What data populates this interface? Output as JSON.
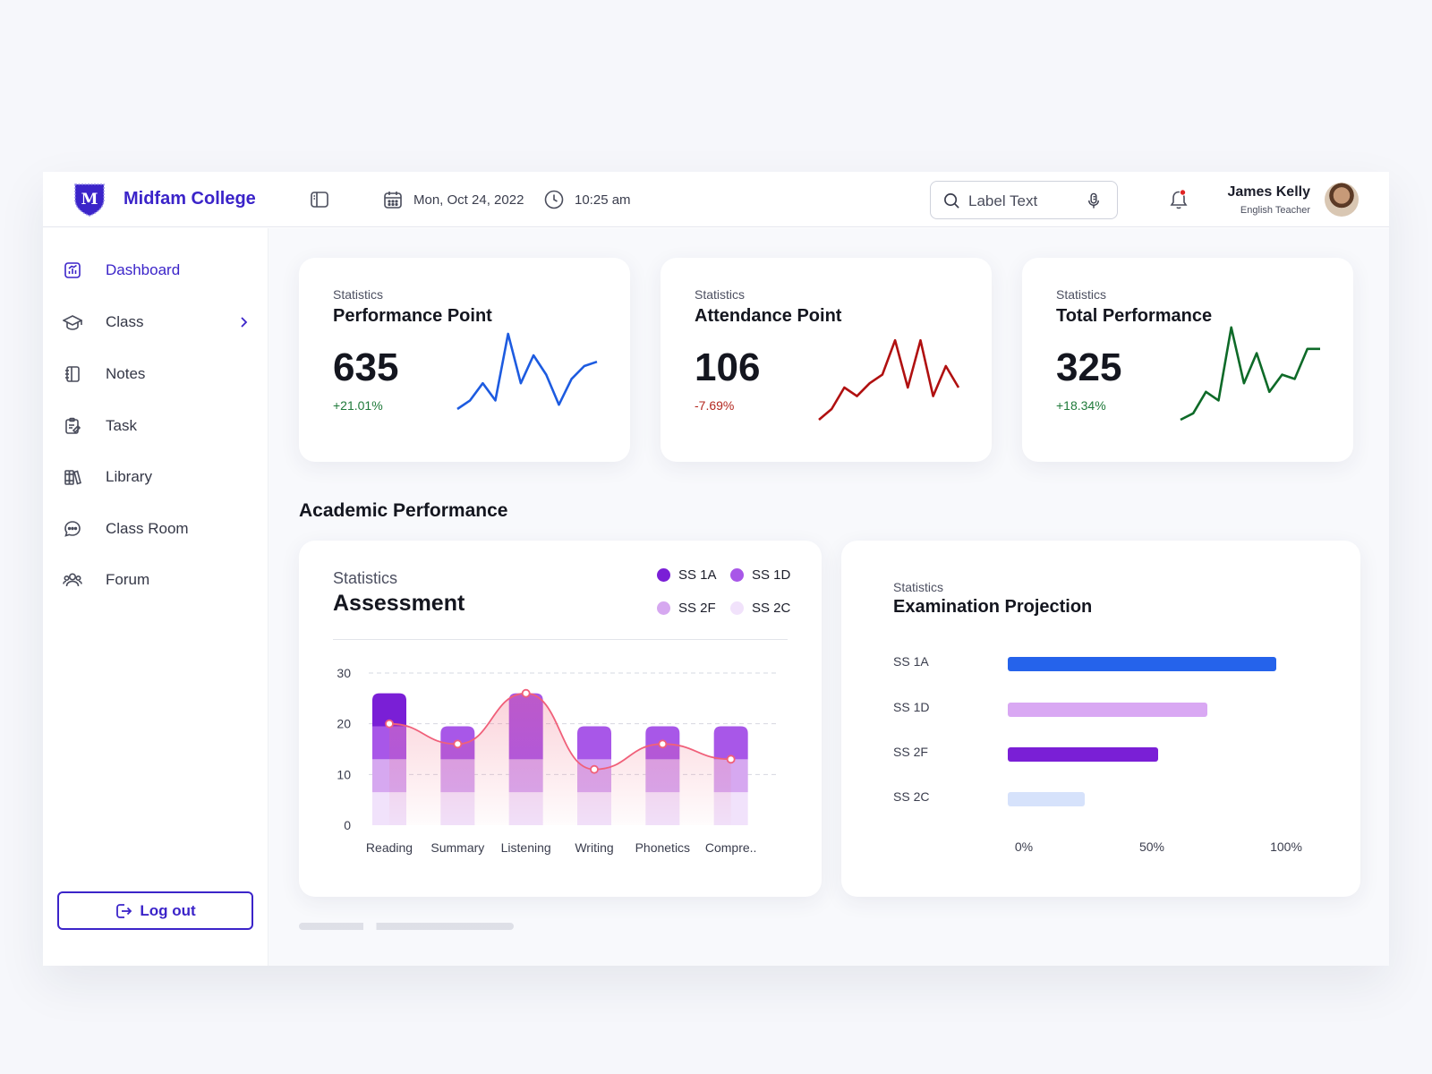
{
  "app": {
    "brand": "Midfam College",
    "logo_letter": "M",
    "date": "Mon, Oct 24, 2022",
    "time": "10:25 am",
    "search_placeholder": "Label Text",
    "user": {
      "name": "James Kelly",
      "role": "English Teacher"
    }
  },
  "sidebar": {
    "items": [
      {
        "label": "Dashboard",
        "icon": "dashboard-icon",
        "active": true
      },
      {
        "label": "Class",
        "icon": "graduation-cap-icon",
        "has_submenu": true
      },
      {
        "label": "Notes",
        "icon": "notebook-icon"
      },
      {
        "label": "Task",
        "icon": "task-icon"
      },
      {
        "label": "Library",
        "icon": "books-icon"
      },
      {
        "label": "Class Room",
        "icon": "chat-icon"
      },
      {
        "label": "Forum",
        "icon": "users-icon"
      }
    ],
    "logout_label": "Log out"
  },
  "stats": [
    {
      "subtitle": "Statistics",
      "title": "Performance Point",
      "value": "635",
      "change": "+21.01%",
      "change_color": "#1f7a3a",
      "line_color": "#1d5be0"
    },
    {
      "subtitle": "Statistics",
      "title": "Attendance Point",
      "value": "106",
      "change": "-7.69%",
      "change_color": "#b3261e",
      "line_color": "#b01010"
    },
    {
      "subtitle": "Statistics",
      "title": "Total Performance",
      "value": "325",
      "change": "+18.34%",
      "change_color": "#1f7a3a",
      "line_color": "#0e6a28"
    }
  ],
  "section_title": "Academic Performance",
  "assessment": {
    "subtitle": "Statistics",
    "title": "Assessment",
    "legend": [
      {
        "name": "SS 1A",
        "color": "#7a1fd6"
      },
      {
        "name": "SS 1D",
        "color": "#a857e8"
      },
      {
        "name": "SS 2F",
        "color": "#d6a8f0"
      },
      {
        "name": "SS 2C",
        "color": "#f1e2fb"
      }
    ]
  },
  "examination": {
    "subtitle": "Statistics",
    "title": "Examination Projection",
    "rows": [
      {
        "label": "SS 1A",
        "value": 98,
        "color": "#2563eb"
      },
      {
        "label": "SS 1D",
        "value": 73,
        "color": "#d9a8f3"
      },
      {
        "label": "SS 2F",
        "value": 55,
        "color": "#7a1fd6"
      },
      {
        "label": "SS 2C",
        "value": 28,
        "color": "#d6e2fb"
      }
    ],
    "axis_labels": [
      "0%",
      "50%",
      "100%"
    ]
  },
  "chart_data": [
    {
      "type": "line",
      "title": "Performance Point",
      "x": [
        1,
        2,
        3,
        4,
        5,
        6,
        7,
        8,
        9,
        10,
        11,
        12
      ],
      "values": [
        10,
        14,
        22,
        14,
        45,
        22,
        35,
        26,
        12,
        24,
        30,
        32
      ],
      "color": "#1d5be0"
    },
    {
      "type": "line",
      "title": "Attendance Point",
      "x": [
        1,
        2,
        3,
        4,
        5,
        6,
        7,
        8,
        9,
        10,
        11,
        12
      ],
      "values": [
        5,
        10,
        20,
        16,
        22,
        26,
        42,
        20,
        42,
        16,
        30,
        20
      ],
      "color": "#b01010"
    },
    {
      "type": "line",
      "title": "Total Performance",
      "x": [
        1,
        2,
        3,
        4,
        5,
        6,
        7,
        8,
        9,
        10,
        11,
        12
      ],
      "values": [
        5,
        8,
        18,
        14,
        48,
        22,
        36,
        18,
        26,
        24,
        38,
        38
      ],
      "color": "#0e6a28"
    },
    {
      "type": "bar",
      "title": "Assessment",
      "stacked": true,
      "categories": [
        "Reading",
        "Summary",
        "Listening",
        "Writing",
        "Phonetics",
        "Compre.."
      ],
      "ylim": [
        0,
        30
      ],
      "yticks": [
        0,
        10,
        20,
        30
      ],
      "series": [
        {
          "name": "SS 2C",
          "color": "#f1e2fb",
          "values": [
            6.5,
            6.5,
            6.5,
            6.5,
            6.5,
            6.5
          ]
        },
        {
          "name": "SS 2F",
          "color": "#d6a8f0",
          "values": [
            6.5,
            6.5,
            6.5,
            6.5,
            6.5,
            6.5
          ]
        },
        {
          "name": "SS 1D",
          "color": "#a857e8",
          "values": [
            6.5,
            6.5,
            13,
            6.5,
            6.5,
            6.5
          ]
        },
        {
          "name": "SS 1A",
          "color": "#7a1fd6",
          "values": [
            6.5,
            0,
            0,
            0,
            0,
            0
          ]
        }
      ],
      "trend_line": {
        "color": "#f0607a",
        "values": [
          20,
          16,
          26,
          11,
          16,
          13
        ]
      }
    },
    {
      "type": "bar",
      "orientation": "horizontal",
      "title": "Examination Projection",
      "categories": [
        "SS 1A",
        "SS 1D",
        "SS 2F",
        "SS 2C"
      ],
      "values": [
        98,
        73,
        55,
        28
      ],
      "xlim": [
        0,
        100
      ],
      "xticks": [
        "0%",
        "50%",
        "100%"
      ]
    }
  ]
}
